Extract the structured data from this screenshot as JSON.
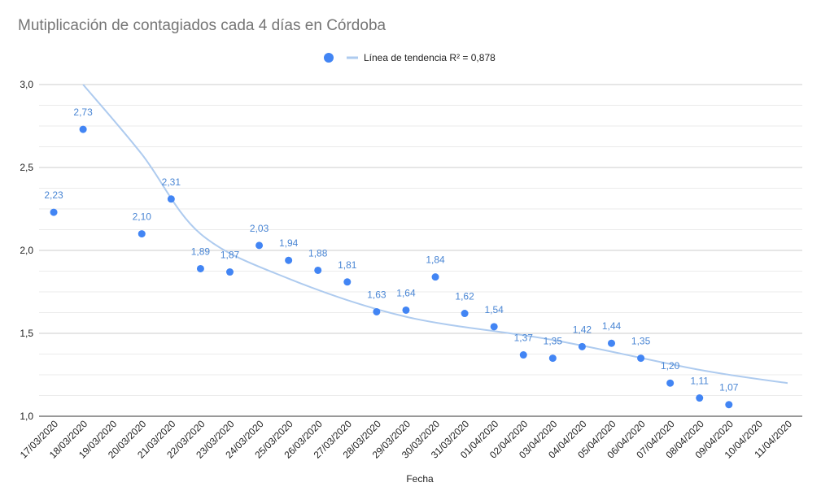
{
  "chart_data": {
    "type": "scatter",
    "title": "Mutiplicación de contagiados cada 4 días en Córdoba",
    "xlabel": "Fecha",
    "ylabel": "",
    "ylim": [
      1.0,
      3.0
    ],
    "y_ticks": [
      "1,0",
      "1,5",
      "2,0",
      "2,5",
      "3,0"
    ],
    "grid": true,
    "legend_position": "top",
    "categories": [
      "17/03/2020",
      "18/03/2020",
      "19/03/2020",
      "20/03/2020",
      "21/03/2020",
      "22/03/2020",
      "23/03/2020",
      "24/03/2020",
      "25/03/2020",
      "26/03/2020",
      "27/03/2020",
      "28/03/2020",
      "29/03/2020",
      "30/03/2020",
      "31/03/2020",
      "01/04/2020",
      "02/04/2020",
      "03/04/2020",
      "04/04/2020",
      "05/04/2020",
      "06/04/2020",
      "07/04/2020",
      "08/04/2020",
      "09/04/2020",
      "10/04/2020",
      "11/04/2020"
    ],
    "series": [
      {
        "color": "#4285f4",
        "points": [
          {
            "x": "17/03/2020",
            "y": 2.23,
            "label": "2,23"
          },
          {
            "x": "18/03/2020",
            "y": 2.73,
            "label": "2,73"
          },
          {
            "x": "20/03/2020",
            "y": 2.1,
            "label": "2,10"
          },
          {
            "x": "21/03/2020",
            "y": 2.31,
            "label": "2,31"
          },
          {
            "x": "22/03/2020",
            "y": 1.89,
            "label": "1,89"
          },
          {
            "x": "23/03/2020",
            "y": 1.87,
            "label": "1,87"
          },
          {
            "x": "24/03/2020",
            "y": 2.03,
            "label": "2,03"
          },
          {
            "x": "25/03/2020",
            "y": 1.94,
            "label": "1,94"
          },
          {
            "x": "26/03/2020",
            "y": 1.88,
            "label": "1,88"
          },
          {
            "x": "27/03/2020",
            "y": 1.81,
            "label": "1,81"
          },
          {
            "x": "28/03/2020",
            "y": 1.63,
            "label": "1,63"
          },
          {
            "x": "29/03/2020",
            "y": 1.64,
            "label": "1,64"
          },
          {
            "x": "30/03/2020",
            "y": 1.84,
            "label": "1,84"
          },
          {
            "x": "31/03/2020",
            "y": 1.62,
            "label": "1,62"
          },
          {
            "x": "01/04/2020",
            "y": 1.54,
            "label": "1,54"
          },
          {
            "x": "02/04/2020",
            "y": 1.37,
            "label": "1,37"
          },
          {
            "x": "03/04/2020",
            "y": 1.35,
            "label": "1,35"
          },
          {
            "x": "04/04/2020",
            "y": 1.42,
            "label": "1,42"
          },
          {
            "x": "05/04/2020",
            "y": 1.44,
            "label": "1,44"
          },
          {
            "x": "06/04/2020",
            "y": 1.35,
            "label": "1,35"
          },
          {
            "x": "07/04/2020",
            "y": 1.2,
            "label": "1,20"
          },
          {
            "x": "08/04/2020",
            "y": 1.11,
            "label": "1,11"
          },
          {
            "x": "09/04/2020",
            "y": 1.07,
            "label": "1,07"
          }
        ]
      }
    ],
    "trendline": {
      "type": "logarithmic",
      "label": "Línea de tendencia R² = 0,878",
      "color": "#aecbef",
      "curve": [
        {
          "x": "18/03/2020",
          "y": 3.0
        },
        {
          "x": "20/03/2020",
          "y": 2.58
        },
        {
          "x": "22/03/2020",
          "y": 2.1
        },
        {
          "x": "25/03/2020",
          "y": 1.83
        },
        {
          "x": "29/03/2020",
          "y": 1.6
        },
        {
          "x": "03/04/2020",
          "y": 1.46
        },
        {
          "x": "08/04/2020",
          "y": 1.28
        },
        {
          "x": "11/04/2020",
          "y": 1.2
        }
      ]
    }
  }
}
